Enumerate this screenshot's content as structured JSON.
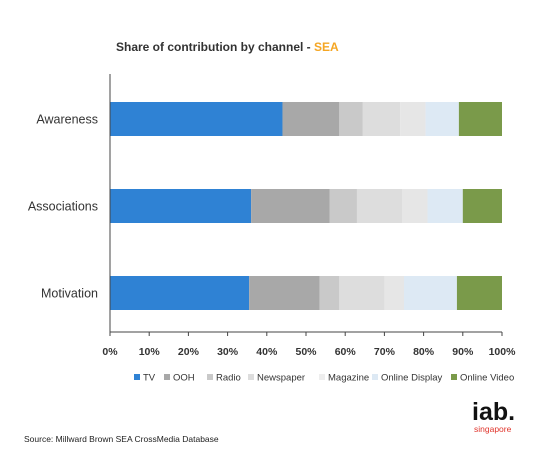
{
  "chart_data": {
    "type": "bar",
    "orientation": "horizontal",
    "stacked": true,
    "title": "Share of contribution by channel - ",
    "title_highlight": "SEA",
    "categories": [
      "Awareness",
      "Associations",
      "Motivation"
    ],
    "series": [
      {
        "name": "TV",
        "color": "#2f82d4",
        "values": [
          44,
          36,
          35.5
        ]
      },
      {
        "name": "OOH",
        "color": "#a8a8a8",
        "values": [
          14.5,
          20,
          18
        ]
      },
      {
        "name": "Radio",
        "color": "#c9c9c9",
        "values": [
          6,
          7,
          5
        ]
      },
      {
        "name": "Newspaper",
        "color": "#dddddd",
        "values": [
          9.5,
          11.5,
          11.5
        ]
      },
      {
        "name": "Magazine",
        "color": "#eeeeee",
        "values": [
          0,
          0,
          0
        ]
      },
      {
        "name": "Online Display",
        "color": "#dde9f4",
        "values": [
          8.5,
          9,
          13.5
        ]
      },
      {
        "name": "Online Video",
        "color": "#7a9a4a",
        "values": [
          11,
          10,
          11.5
        ]
      }
    ],
    "extra_segment": {
      "color": "#e6e6e6",
      "values": [
        6.5,
        6.5,
        5
      ]
    },
    "xlim": [
      0,
      100
    ],
    "ticks": [
      "0%",
      "10%",
      "20%",
      "30%",
      "40%",
      "50%",
      "60%",
      "70%",
      "80%",
      "90%",
      "100%"
    ],
    "legend_position": "bottom",
    "grid": false,
    "colors": {
      "title_highlight": "#f5a623",
      "axis": "#444444"
    }
  },
  "source": "Source: Millward Brown SEA CrossMedia Database",
  "logo": {
    "main": "iab.",
    "sub": "singapore"
  }
}
